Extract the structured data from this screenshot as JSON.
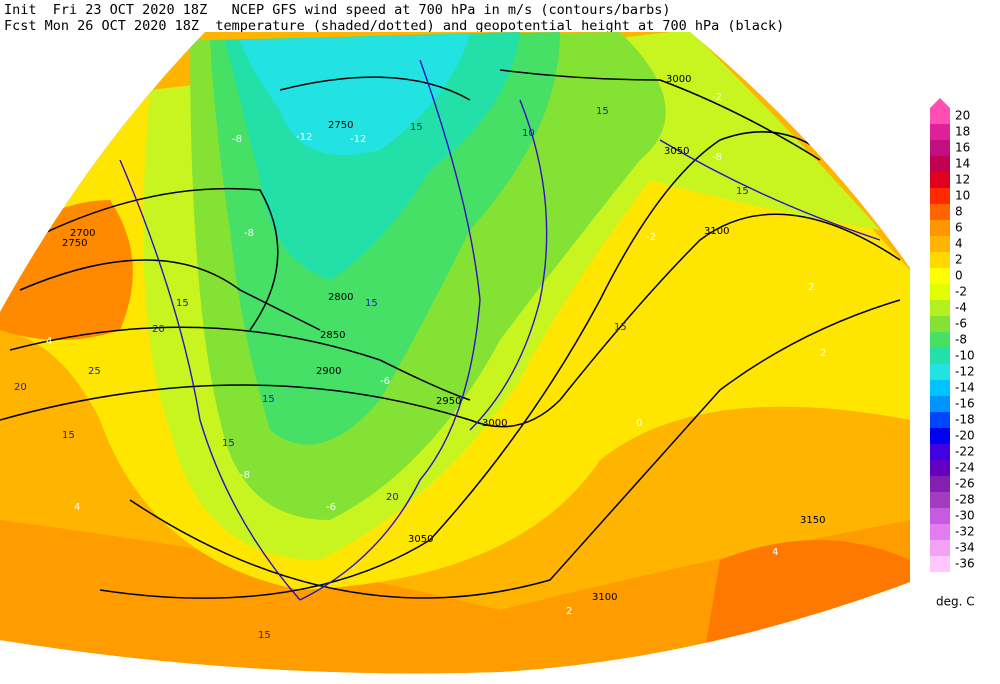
{
  "header": {
    "line1": "Init  Fri 23 OCT 2020 18Z   NCEP GFS wind speed at 700 hPa in m/s (contours/barbs)",
    "line2": "Fcst Mon 26 OCT 2020 18Z  temperature (shaded/dotted) and geopotential height at 700 hPa (black)"
  },
  "colorbar": {
    "unit": "deg. C",
    "levels": [
      20,
      18,
      16,
      14,
      12,
      10,
      8,
      6,
      4,
      2,
      0,
      -2,
      -4,
      -6,
      -8,
      -10,
      -12,
      -14,
      -16,
      -18,
      -20,
      -22,
      -24,
      -26,
      -28,
      -30,
      -32,
      -34,
      -36
    ],
    "colors": [
      "#ff4fb0",
      "#e0209a",
      "#c01080",
      "#c00050",
      "#e00020",
      "#ff2a00",
      "#ff6400",
      "#ff9600",
      "#ffb400",
      "#ffd800",
      "#ffff00",
      "#e2ff00",
      "#b4f020",
      "#84e234",
      "#46e066",
      "#22e0a8",
      "#22e2e2",
      "#00c4ff",
      "#0094ff",
      "#0046ff",
      "#0000f0",
      "#4000e0",
      "#6400c4",
      "#8420b0",
      "#a43cc0",
      "#c65ae0",
      "#e27cf0",
      "#f2a2f2",
      "#ffc6ff"
    ]
  },
  "map": {
    "height_labels": [
      "2700",
      "2750",
      "2750",
      "2800",
      "2850",
      "2900",
      "2950",
      "3000",
      "3000",
      "3050",
      "3050",
      "3100",
      "3100",
      "3150"
    ],
    "wind_labels": [
      "15",
      "15",
      "15",
      "20",
      "20",
      "15",
      "15",
      "15",
      "25",
      "20",
      "15",
      "15",
      "15",
      "10",
      "15"
    ],
    "temp_labels": [
      "-8",
      "-12",
      "-12",
      "-8",
      "-8",
      "-6",
      "2",
      "4",
      "4",
      "2",
      "-2",
      "0",
      "-2",
      "4",
      "2",
      "-6",
      "-8"
    ]
  }
}
